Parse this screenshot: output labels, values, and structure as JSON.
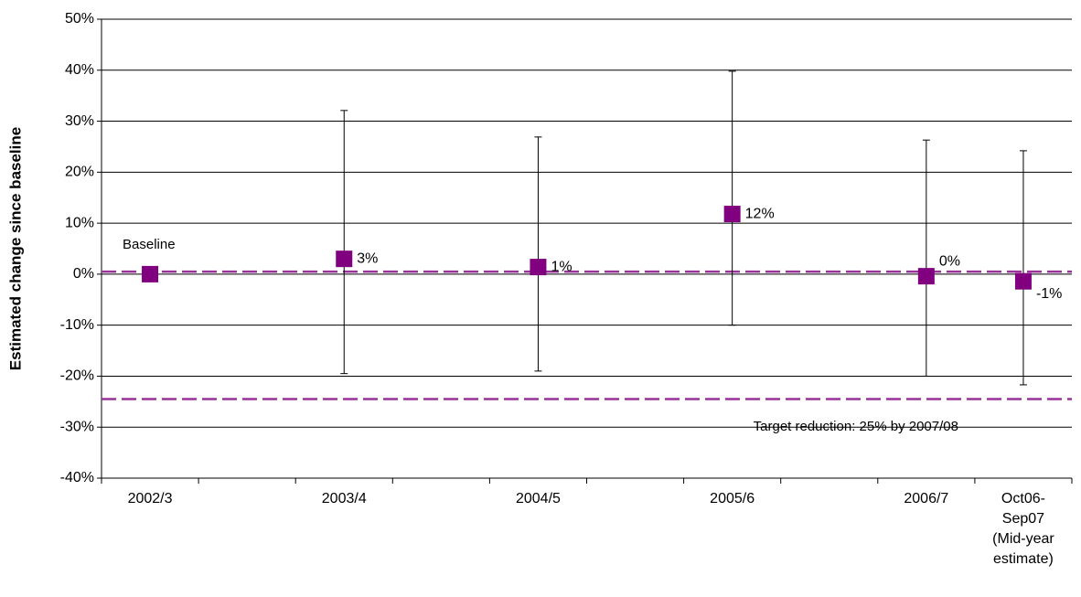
{
  "chart_data": {
    "type": "errorbar",
    "y_label": "Estimated change since baseline",
    "categories": [
      "2002/3",
      null,
      "2003/4",
      null,
      "2004/5",
      null,
      "2005/6",
      null,
      "2006/7",
      "Oct06-Sep07 (Mid-year estimate)"
    ],
    "values": [
      0,
      null,
      3,
      null,
      1.4,
      null,
      11.8,
      null,
      -0.4,
      -1.4
    ],
    "value_labels": [
      null,
      null,
      "3%",
      null,
      "1%",
      null,
      "12%",
      null,
      "0%",
      "-1%"
    ],
    "upper": [
      null,
      null,
      32.1,
      null,
      26.9,
      null,
      39.8,
      null,
      26.3,
      24.2
    ],
    "lower": [
      null,
      null,
      -19.5,
      null,
      -19,
      null,
      -10,
      null,
      -20,
      -21.7
    ],
    "color": "#800080",
    "reference_lines": [
      {
        "value": 0.5,
        "color": "#993399"
      },
      {
        "value": -24.5,
        "color": "#993399"
      }
    ],
    "annotations": [
      {
        "text": "Baseline",
        "x": 0,
        "y": 5
      },
      {
        "text": "Target reduction: 25% by 2007/08",
        "x": 6.5,
        "y": -30
      }
    ],
    "ylim": [
      -40,
      50
    ],
    "yticks": [
      {
        "value": -40,
        "label": "-40%"
      },
      {
        "value": -30,
        "label": "-30%"
      },
      {
        "value": -20,
        "label": "-20%"
      },
      {
        "value": -10,
        "label": "-10%"
      },
      {
        "value": 0,
        "label": "0%"
      },
      {
        "value": 10,
        "label": "10%"
      },
      {
        "value": 20,
        "label": "20%"
      },
      {
        "value": 30,
        "label": "30%"
      },
      {
        "value": 40,
        "label": "40%"
      },
      {
        "value": 50,
        "label": "50%"
      }
    ],
    "grid": true
  }
}
